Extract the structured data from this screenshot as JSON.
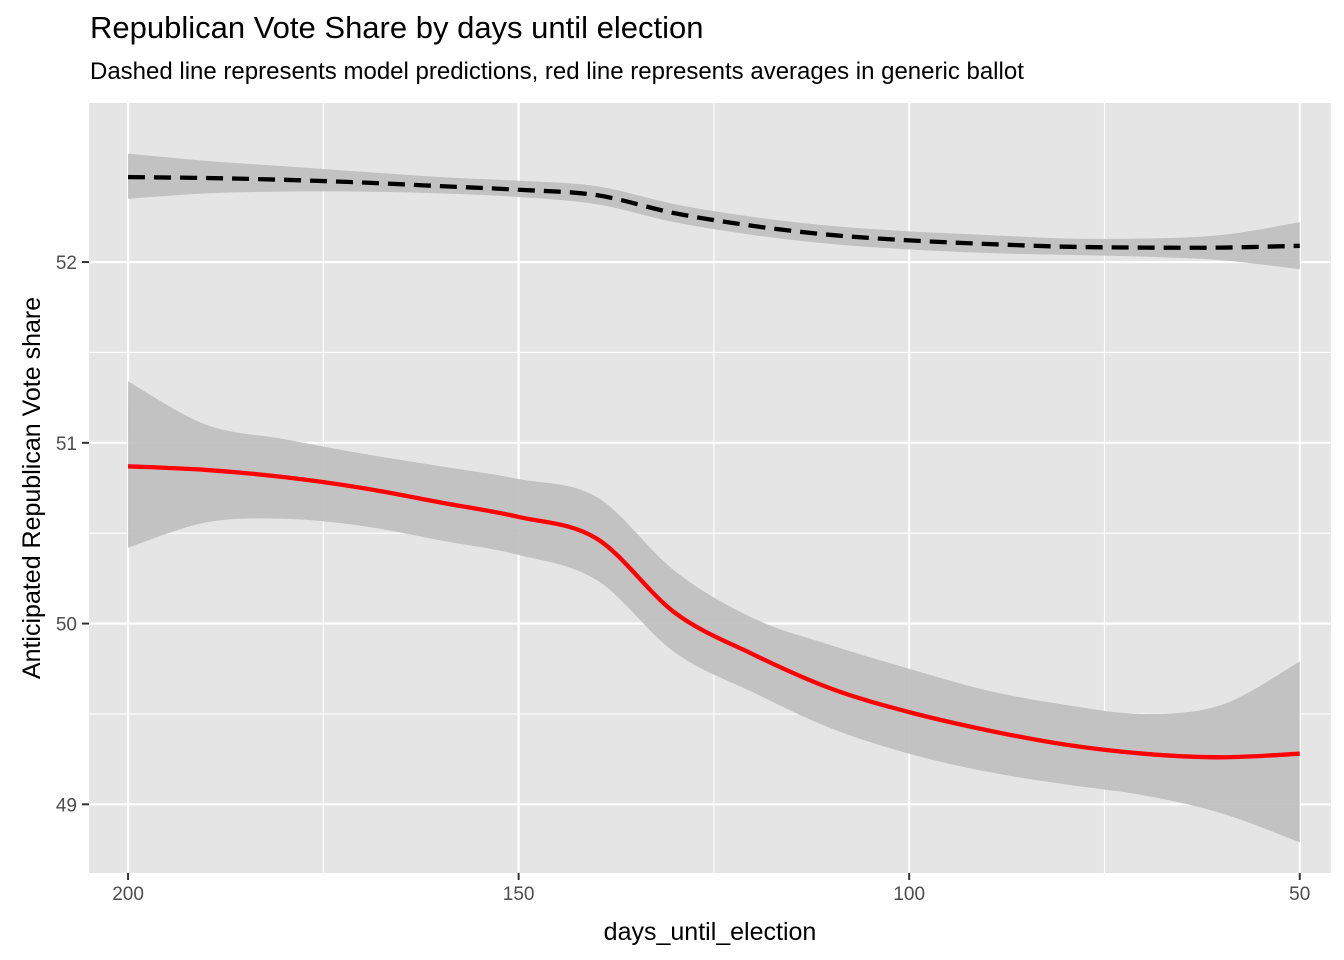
{
  "chart_data": {
    "type": "line",
    "title": "Republican Vote Share by days until election",
    "subtitle": "Dashed line represents model predictions, red line represents averages in generic ballot",
    "xlabel": "days_until_election",
    "ylabel": "Anticipated Republican Vote share",
    "xlim": [
      205,
      46
    ],
    "ylim": [
      48.62,
      52.88
    ],
    "x_reversed": true,
    "x_ticks": [
      200,
      150,
      100,
      50
    ],
    "y_ticks": [
      49,
      50,
      51,
      52
    ],
    "grid": true,
    "legend": "none",
    "series": [
      {
        "style": "dashed",
        "color": "#000000",
        "x": [
          200,
          190,
          180,
          170,
          160,
          150,
          140,
          130,
          120,
          110,
          100,
          90,
          80,
          70,
          60,
          50
        ],
        "y": [
          52.47,
          52.465,
          52.455,
          52.44,
          52.42,
          52.4,
          52.37,
          52.27,
          52.2,
          52.15,
          52.12,
          52.1,
          52.085,
          52.08,
          52.08,
          52.09
        ],
        "ci_upper": [
          52.6,
          52.56,
          52.53,
          52.5,
          52.47,
          52.45,
          52.42,
          52.32,
          52.25,
          52.2,
          52.17,
          52.15,
          52.13,
          52.13,
          52.15,
          52.22
        ],
        "ci_lower": [
          52.35,
          52.38,
          52.39,
          52.39,
          52.38,
          52.36,
          52.32,
          52.22,
          52.15,
          52.1,
          52.07,
          52.05,
          52.04,
          52.03,
          52.01,
          51.96
        ]
      },
      {
        "style": "solid",
        "color": "#ff0000",
        "x": [
          200,
          190,
          180,
          170,
          160,
          150,
          140,
          130,
          120,
          110,
          100,
          90,
          80,
          70,
          60,
          50
        ],
        "y": [
          50.87,
          50.85,
          50.81,
          50.75,
          50.67,
          50.59,
          50.47,
          50.06,
          49.83,
          49.64,
          49.51,
          49.41,
          49.33,
          49.28,
          49.26,
          49.28
        ],
        "ci_upper": [
          51.34,
          51.1,
          51.02,
          50.94,
          50.87,
          50.8,
          50.7,
          50.29,
          50.03,
          49.88,
          49.75,
          49.63,
          49.55,
          49.5,
          49.55,
          49.79
        ],
        "ci_lower": [
          50.42,
          50.56,
          50.58,
          50.54,
          50.46,
          50.38,
          50.24,
          49.84,
          49.62,
          49.42,
          49.28,
          49.18,
          49.11,
          49.05,
          48.95,
          48.79
        ]
      }
    ],
    "colors": {
      "panel_background": "#e5e5e5",
      "grid": "#ffffff",
      "ribbon": "#bebebe"
    }
  }
}
